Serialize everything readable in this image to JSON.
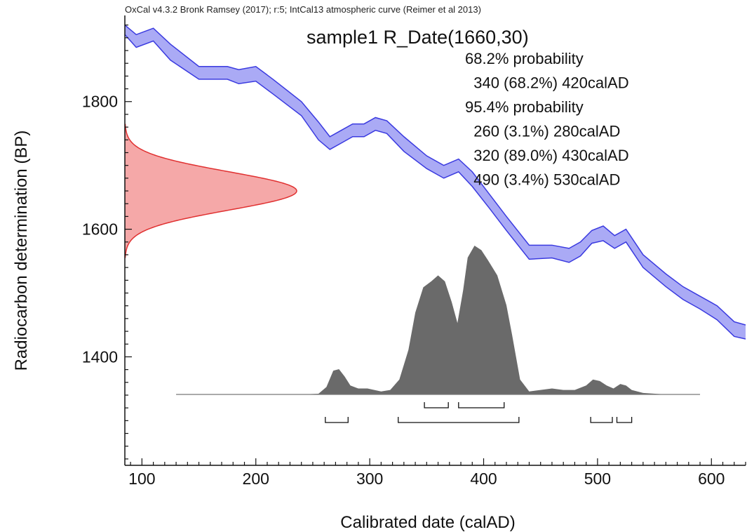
{
  "header": "OxCal v4.3.2 Bronk Ramsey (2017); r:5; IntCal13 atmospheric curve (Reimer et al 2013)",
  "chart_data": {
    "type": "area",
    "title": "sample1 R_Date(1660,30)",
    "xlabel": "Calibrated date (calAD)",
    "ylabel": "Radiocarbon determination (BP)",
    "xlim": [
      85,
      630
    ],
    "ylim": [
      1230,
      1935
    ],
    "x_ticks": [
      100,
      200,
      300,
      400,
      500,
      600
    ],
    "y_ticks": [
      1400,
      1600,
      1800
    ],
    "colors": {
      "curve": "#3a3ae0",
      "curve_fill": "#aaaaf5",
      "date": "#e03030",
      "date_fill": "#f5a8a8",
      "posterior": "#6a6a6a"
    },
    "calibration_curve": {
      "x": [
        85,
        95,
        110,
        125,
        150,
        175,
        185,
        200,
        215,
        240,
        255,
        265,
        275,
        285,
        295,
        305,
        315,
        330,
        350,
        365,
        378,
        390,
        405,
        420,
        440,
        460,
        475,
        485,
        495,
        505,
        515,
        525,
        540,
        560,
        575,
        590,
        605,
        620,
        630
      ],
      "upper": [
        1920,
        1905,
        1915,
        1890,
        1855,
        1855,
        1850,
        1855,
        1835,
        1800,
        1768,
        1745,
        1755,
        1765,
        1765,
        1775,
        1770,
        1745,
        1715,
        1700,
        1710,
        1690,
        1655,
        1620,
        1575,
        1575,
        1570,
        1580,
        1598,
        1605,
        1590,
        1600,
        1560,
        1530,
        1510,
        1495,
        1480,
        1455,
        1450
      ],
      "lower": [
        1905,
        1885,
        1895,
        1865,
        1835,
        1835,
        1828,
        1832,
        1812,
        1778,
        1740,
        1725,
        1735,
        1745,
        1745,
        1755,
        1750,
        1722,
        1695,
        1680,
        1690,
        1667,
        1633,
        1598,
        1553,
        1555,
        1548,
        1558,
        1578,
        1582,
        1570,
        1580,
        1540,
        1510,
        1490,
        1475,
        1458,
        1432,
        1428
      ]
    },
    "radiocarbon_date": {
      "mean": 1660,
      "sd": 30,
      "label": "R_Date(1660,30)"
    },
    "posterior_distribution": {
      "x": [
        130,
        240,
        255,
        262,
        268,
        273,
        278,
        283,
        290,
        298,
        310,
        318,
        326,
        334,
        340,
        347,
        354,
        360,
        366,
        372,
        377,
        382,
        386,
        392,
        398,
        404,
        412,
        420,
        425,
        432,
        440,
        460,
        470,
        480,
        490,
        496,
        502,
        508,
        514,
        520,
        525,
        530,
        540,
        560,
        590
      ],
      "density": [
        0,
        0,
        0.005,
        0.05,
        0.16,
        0.17,
        0.12,
        0.06,
        0.04,
        0.04,
        0.02,
        0.03,
        0.1,
        0.3,
        0.55,
        0.72,
        0.76,
        0.8,
        0.76,
        0.62,
        0.48,
        0.7,
        0.92,
        1.0,
        0.97,
        0.9,
        0.8,
        0.6,
        0.4,
        0.1,
        0.02,
        0.04,
        0.03,
        0.03,
        0.06,
        0.1,
        0.09,
        0.06,
        0.04,
        0.07,
        0.06,
        0.03,
        0.01,
        0.0,
        0.0
      ]
    },
    "range_brackets": [
      {
        "level": "68.2%",
        "from": 348,
        "to": 369
      },
      {
        "level": "68.2%",
        "from": 378,
        "to": 418
      },
      {
        "level": "95.4%",
        "from": 261,
        "to": 281
      },
      {
        "level": "95.4%",
        "from": 325,
        "to": 431
      },
      {
        "level": "95.4%",
        "from": 494,
        "to": 513
      },
      {
        "level": "95.4%",
        "from": 517,
        "to": 530
      }
    ],
    "probability_text": [
      "68.2% probability",
      "  340 (68.2%) 420calAD",
      "95.4% probability",
      "  260 (3.1%) 280calAD",
      "  320 (89.0%) 430calAD",
      "  490 (3.4%) 530calAD"
    ]
  }
}
